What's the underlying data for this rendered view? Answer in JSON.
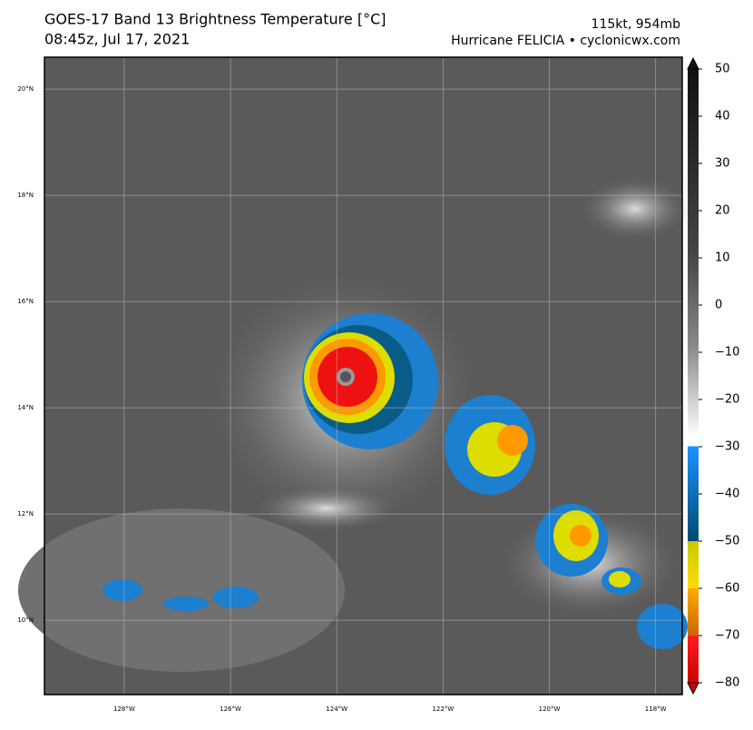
{
  "header": {
    "title": "GOES-17 Band 13 Brightness Temperature [°C]",
    "time": "08:45z, Jul 17, 2021",
    "storm_stats": "115kt, 954mb",
    "storm_credit": "Hurricane FELICIA • cyclonicwx.com"
  },
  "map": {
    "lonlim": [
      -129.5,
      -117.5
    ],
    "latlim": [
      8.6,
      20.6
    ],
    "lon_ticks": [
      {
        "value": -128,
        "label": "128°W"
      },
      {
        "value": -126,
        "label": "126°W"
      },
      {
        "value": -124,
        "label": "124°W"
      },
      {
        "value": -122,
        "label": "122°W"
      },
      {
        "value": -120,
        "label": "120°W"
      },
      {
        "value": -118,
        "label": "118°W"
      }
    ],
    "lat_ticks": [
      {
        "value": 20,
        "label": "20°N"
      },
      {
        "value": 18,
        "label": "18°N"
      },
      {
        "value": 16,
        "label": "16°N"
      },
      {
        "value": 14,
        "label": "14°N"
      },
      {
        "value": 12,
        "label": "12°N"
      },
      {
        "value": 10,
        "label": "10°N"
      }
    ]
  },
  "colorbar": {
    "lim": [
      -80,
      50
    ],
    "ticks": [
      50,
      40,
      30,
      20,
      10,
      0,
      {
        "value": -10,
        "label": "−10"
      },
      {
        "value": -20,
        "label": "−20"
      },
      {
        "value": -30,
        "label": "−30"
      },
      {
        "value": -40,
        "label": "−40"
      },
      {
        "value": -50,
        "label": "−50"
      },
      {
        "value": -60,
        "label": "−60"
      },
      {
        "value": -70,
        "label": "−70"
      },
      {
        "value": -80,
        "label": "−80"
      }
    ]
  }
}
